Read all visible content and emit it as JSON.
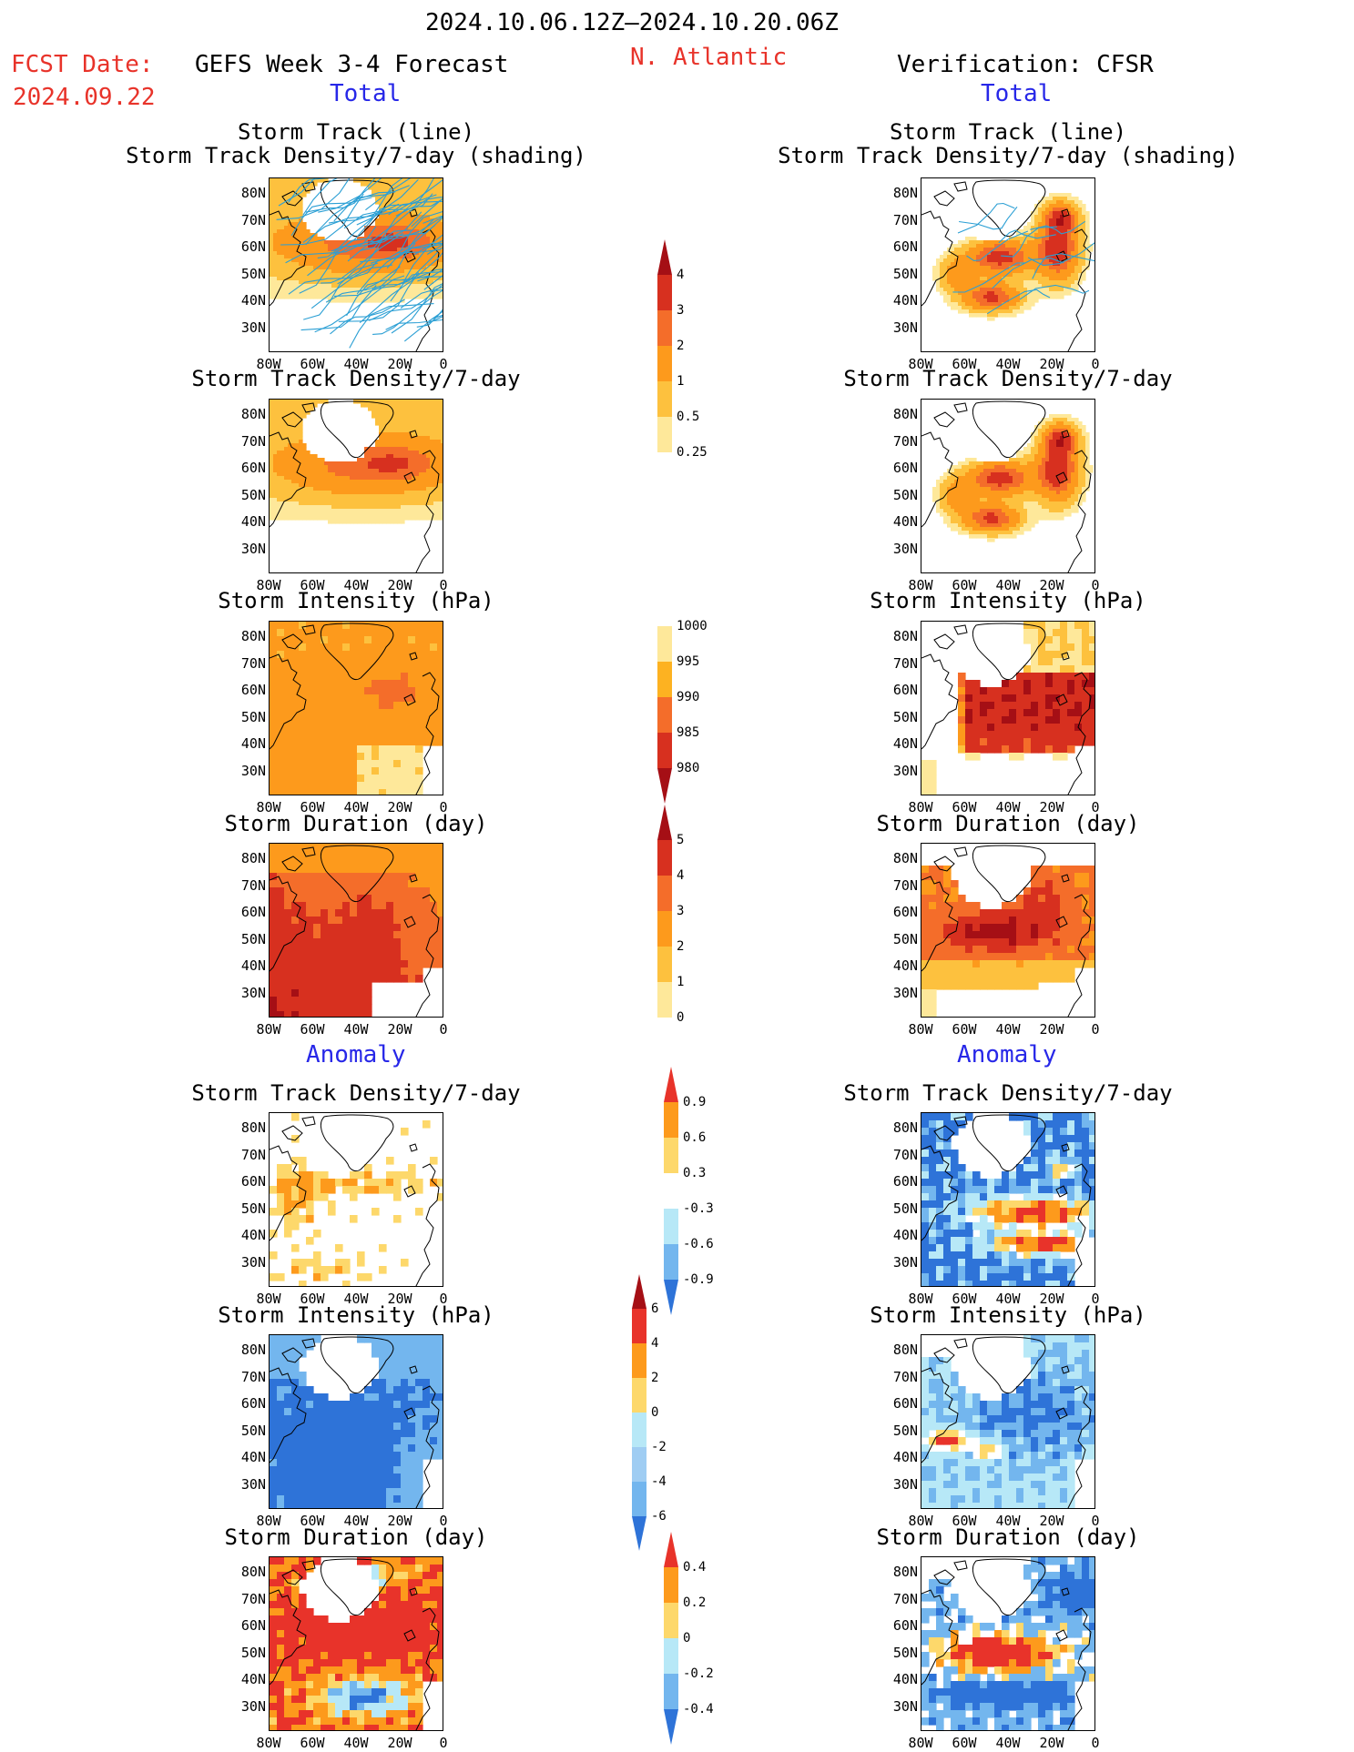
{
  "header": {
    "date_range": "2024.10.06.12Z–2024.10.20.06Z",
    "fcst_label": "FCST Date:",
    "fcst_date": "2024.09.22",
    "left_title": "GEFS Week 3-4 Forecast",
    "region": "N. Atlantic",
    "right_title": "Verification: CFSR",
    "total_label": "Total",
    "anomaly_label": "Anomaly"
  },
  "panel_titles": {
    "track_line": "Storm Track (line)",
    "track_shading": "Storm Track Density/7-day (shading)",
    "density": "Storm Track Density/7-day",
    "intensity": "Storm Intensity (hPa)",
    "duration": "Storm Duration (day)"
  },
  "axes": {
    "lat_ticks": [
      "80N",
      "70N",
      "60N",
      "50N",
      "40N",
      "30N"
    ],
    "lon_ticks": [
      "80W",
      "60W",
      "40W",
      "20W",
      "0"
    ]
  },
  "colorbars": {
    "density_total": {
      "labels": [
        "4",
        "3",
        "2",
        "1",
        "0.5",
        "0.25"
      ],
      "colors": [
        "#a50f15",
        "#d7301f",
        "#f46d2a",
        "#fd9a1c",
        "#fdc13e",
        "#fee89a",
        "#ffffff"
      ]
    },
    "intensity_total": {
      "labels": [
        "1000",
        "995",
        "990",
        "985",
        "980"
      ],
      "colors": [
        "#ffffff",
        "#fee89a",
        "#fdb221",
        "#f46d2a",
        "#d7301f",
        "#a50f15"
      ]
    },
    "duration_total": {
      "labels": [
        "5",
        "4",
        "3",
        "2",
        "1",
        "0"
      ],
      "colors": [
        "#a50f15",
        "#d7301f",
        "#f46d2a",
        "#fd9a1c",
        "#fdc13e",
        "#fee89a",
        "#ffffff"
      ]
    },
    "density_anom": {
      "labels": [
        "0.9",
        "0.6",
        "0.3",
        "-0.3",
        "-0.6",
        "-0.9"
      ],
      "colors": [
        "#e8332a",
        "#fd9a1c",
        "#fdd86b",
        "#ffffff",
        "#b7e8f7",
        "#73b6ee",
        "#2e73d8"
      ]
    },
    "intensity_anom": {
      "labels": [
        "6",
        "4",
        "2",
        "0",
        "-2",
        "-4",
        "-6"
      ],
      "colors": [
        "#a50f15",
        "#e8332a",
        "#fd9a1c",
        "#fdd86b",
        "#b7e8f7",
        "#9fcdf3",
        "#73b6ee",
        "#2e73d8"
      ]
    },
    "duration_anom": {
      "labels": [
        "0.4",
        "0.2",
        "0",
        "-0.2",
        "-0.4"
      ],
      "colors": [
        "#e8332a",
        "#fd9a1c",
        "#fdd86b",
        "#b7e8f7",
        "#73b6ee",
        "#2e73d8"
      ]
    }
  },
  "map_fields": {
    "gefs_track": {
      "palette": [
        "#ffffff",
        "#fee89a",
        "#fdc13e",
        "#fd9a1c",
        "#f46d2a",
        "#d7301f",
        "#a50f15"
      ],
      "tracks": true
    },
    "cfsr_track": {
      "palette": [
        "#ffffff",
        "#fee89a",
        "#fdc13e",
        "#fd9a1c",
        "#f46d2a",
        "#d7301f",
        "#a50f15"
      ],
      "tracks": true
    }
  },
  "colors": {
    "red_text": "#e8332a",
    "blue_text": "#2727e8",
    "track_line": "#2b9fd4"
  }
}
